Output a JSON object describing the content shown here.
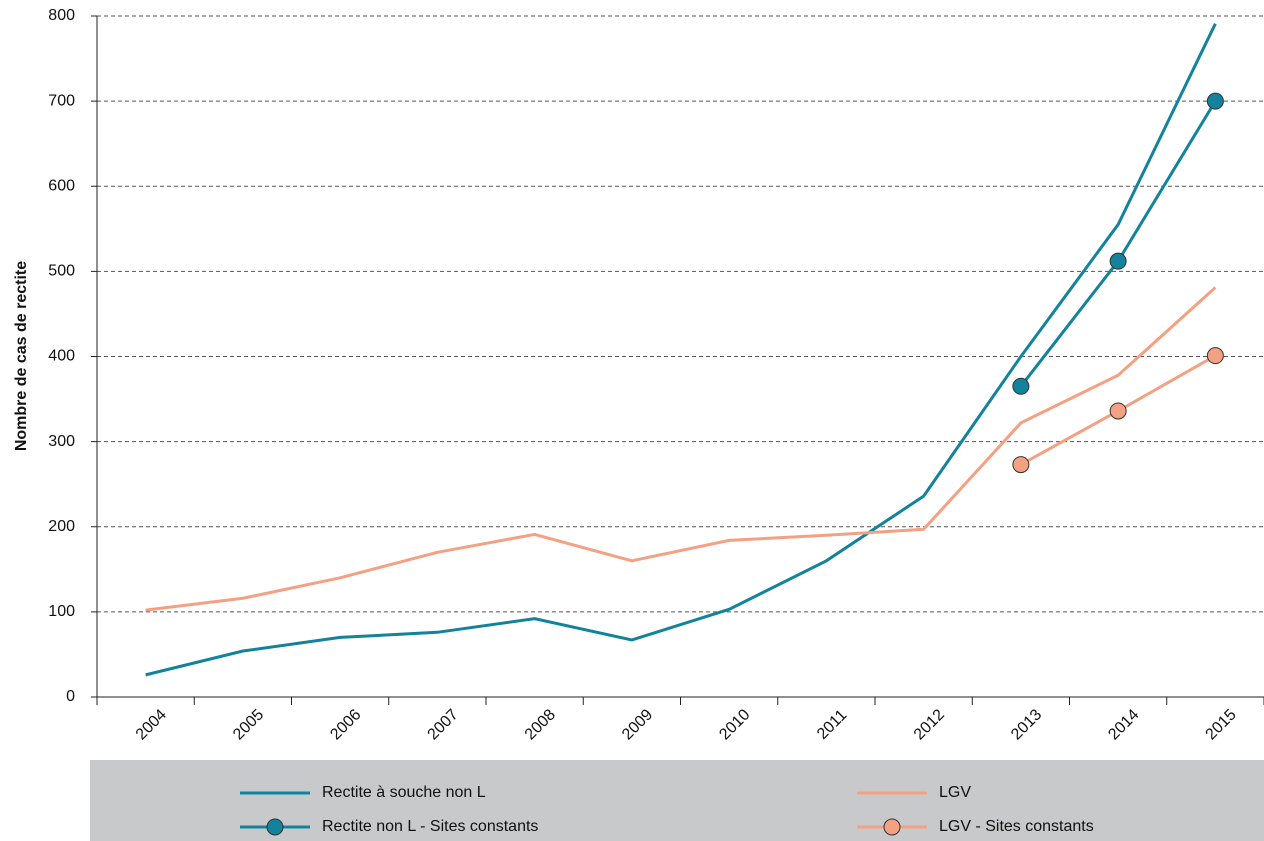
{
  "chart_data": {
    "type": "line",
    "y_label": "Nombre de cas de rectite",
    "categories": [
      "2004",
      "2005",
      "2006",
      "2007",
      "2008",
      "2009",
      "2010",
      "2011",
      "2012",
      "2013",
      "2014",
      "2015"
    ],
    "series": [
      {
        "name": "Rectite à souche non L",
        "color": "#13829c",
        "marker": false,
        "values": [
          26,
          54,
          70,
          76,
          92,
          67,
          103,
          160,
          236,
          400,
          555,
          791
        ]
      },
      {
        "name": "LGV",
        "color": "#f4a083",
        "marker": false,
        "values": [
          102,
          116,
          140,
          170,
          191,
          160,
          184,
          190,
          197,
          322,
          378,
          481
        ]
      },
      {
        "name": "Rectite non L - Sites constants",
        "color": "#13829c",
        "marker": true,
        "values": [
          null,
          null,
          null,
          null,
          null,
          null,
          null,
          null,
          null,
          365,
          512,
          700
        ]
      },
      {
        "name": "LGV - Sites constants",
        "color": "#f4a083",
        "marker": true,
        "values": [
          null,
          null,
          null,
          null,
          null,
          null,
          null,
          null,
          null,
          273,
          336,
          401
        ]
      }
    ],
    "ylim": [
      0,
      800
    ],
    "yticks": [
      0,
      100,
      200,
      300,
      400,
      500,
      600,
      700,
      800
    ],
    "grid": true
  }
}
